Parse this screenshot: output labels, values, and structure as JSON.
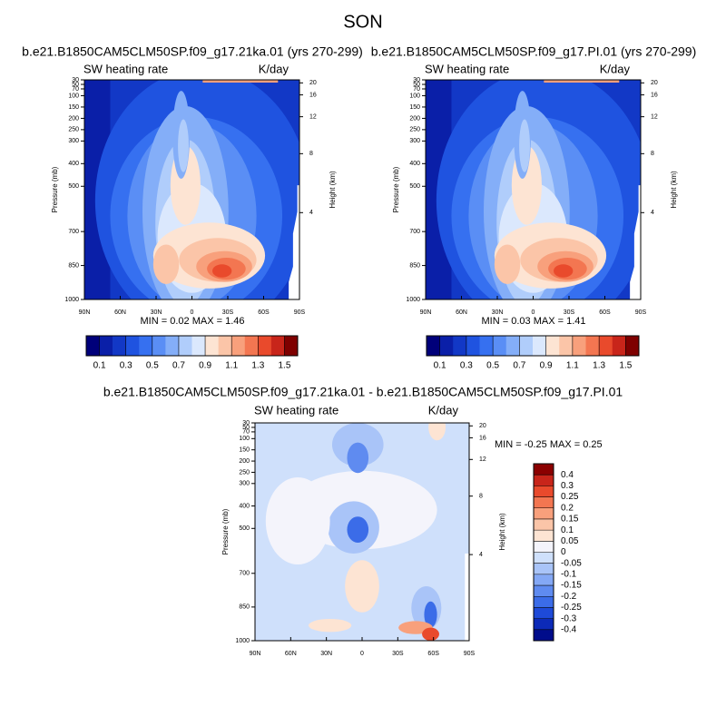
{
  "figure_title": "SON",
  "chart_data": [
    {
      "type": "contour",
      "title": "b.e21.B1850CAM5CLM50SP.f09_g17.21ka.01 (yrs 270-299)",
      "left_label": "SW heating rate",
      "right_label": "K/day",
      "ylabel": "Pressure (mb)",
      "y2label": "Height (km)",
      "xlim": [
        90,
        -90
      ],
      "xticks": [
        {
          "value": 90,
          "label": "90N"
        },
        {
          "value": 60,
          "label": "60N"
        },
        {
          "value": 30,
          "label": "30N"
        },
        0,
        {
          "value": -30,
          "label": "30S"
        },
        {
          "value": -60,
          "label": "60S"
        },
        {
          "value": -90,
          "label": "90S"
        }
      ],
      "ylim": [
        1000,
        30
      ],
      "yticks": [
        30,
        50,
        70,
        100,
        150,
        200,
        250,
        300,
        400,
        500,
        700,
        850,
        1000
      ],
      "y2ticks": [
        4,
        8,
        12,
        16,
        20
      ],
      "min_label": "MIN =",
      "min": 0.02,
      "max_label": "MAX =",
      "max": 1.46,
      "colorbar_orientation": "horizontal",
      "colorbar_lim": [
        0,
        1.6
      ],
      "colorbar_ticks": [
        0.1,
        0.3,
        0.5,
        0.7,
        0.9,
        1.1,
        1.3,
        1.5
      ],
      "colorbar_colors": [
        "#00007a",
        "#0a1fa8",
        "#1238c6",
        "#1f53e0",
        "#3670f0",
        "#5a8ef5",
        "#84aef8",
        "#b0cdfb",
        "#dbe8fd",
        "#fde4d3",
        "#fbc5a8",
        "#f8a07c",
        "#f37651",
        "#e94a2c",
        "#c8251a",
        "#7f0000"
      ]
    },
    {
      "type": "contour",
      "title": "b.e21.B1850CAM5CLM50SP.f09_g17.PI.01 (yrs 270-299)",
      "left_label": "SW heating rate",
      "right_label": "K/day",
      "ylabel": "Pressure (mb)",
      "y2label": "Height (km)",
      "xlim": [
        90,
        -90
      ],
      "xticks": [
        {
          "value": 90,
          "label": "90N"
        },
        {
          "value": 60,
          "label": "60N"
        },
        {
          "value": 30,
          "label": "30N"
        },
        0,
        {
          "value": -30,
          "label": "30S"
        },
        {
          "value": -60,
          "label": "60S"
        },
        {
          "value": -90,
          "label": "90S"
        }
      ],
      "ylim": [
        1000,
        30
      ],
      "yticks": [
        30,
        50,
        70,
        100,
        150,
        200,
        250,
        300,
        400,
        500,
        700,
        850,
        1000
      ],
      "y2ticks": [
        4,
        8,
        12,
        16,
        20
      ],
      "min_label": "MIN =",
      "min": 0.03,
      "max_label": "MAX =",
      "max": 1.41,
      "colorbar_orientation": "horizontal",
      "colorbar_lim": [
        0,
        1.6
      ],
      "colorbar_ticks": [
        0.1,
        0.3,
        0.5,
        0.7,
        0.9,
        1.1,
        1.3,
        1.5
      ],
      "colorbar_colors": [
        "#00007a",
        "#0a1fa8",
        "#1238c6",
        "#1f53e0",
        "#3670f0",
        "#5a8ef5",
        "#84aef8",
        "#b0cdfb",
        "#dbe8fd",
        "#fde4d3",
        "#fbc5a8",
        "#f8a07c",
        "#f37651",
        "#e94a2c",
        "#c8251a",
        "#7f0000"
      ]
    },
    {
      "type": "contour",
      "title": "b.e21.B1850CAM5CLM50SP.f09_g17.21ka.01 - b.e21.B1850CAM5CLM50SP.f09_g17.PI.01",
      "left_label": "SW heating rate",
      "right_label": "K/day",
      "ylabel": "Pressure (mb)",
      "y2label": "Height (km)",
      "xlim": [
        90,
        -90
      ],
      "xticks": [
        {
          "value": 90,
          "label": "90N"
        },
        {
          "value": 60,
          "label": "60N"
        },
        {
          "value": 30,
          "label": "30N"
        },
        0,
        {
          "value": -30,
          "label": "30S"
        },
        {
          "value": -60,
          "label": "60S"
        },
        {
          "value": -90,
          "label": "90S"
        }
      ],
      "ylim": [
        1000,
        30
      ],
      "yticks": [
        30,
        50,
        70,
        100,
        150,
        200,
        250,
        300,
        400,
        500,
        700,
        850,
        1000
      ],
      "y2ticks": [
        4,
        8,
        12,
        16,
        20
      ],
      "min_label": "MIN =",
      "min": -0.25,
      "max_label": "MAX =",
      "max": 0.25,
      "colorbar_orientation": "vertical",
      "colorbar_ticks": [
        -0.4,
        -0.3,
        -0.25,
        -0.2,
        -0.15,
        -0.1,
        -0.05,
        0,
        0.05,
        0.1,
        0.15,
        0.2,
        0.25,
        0.3,
        0.4
      ],
      "colorbar_colors": [
        "#000c8b",
        "#0c2ab8",
        "#1e4ad8",
        "#3b6ce8",
        "#5f8bf0",
        "#84a8f5",
        "#a9c4f8",
        "#cfe0fb",
        "#f4f4fb",
        "#fde4d3",
        "#fbc5a8",
        "#f8a07c",
        "#f37651",
        "#e94a2c",
        "#c8251a",
        "#8b0000"
      ]
    }
  ]
}
